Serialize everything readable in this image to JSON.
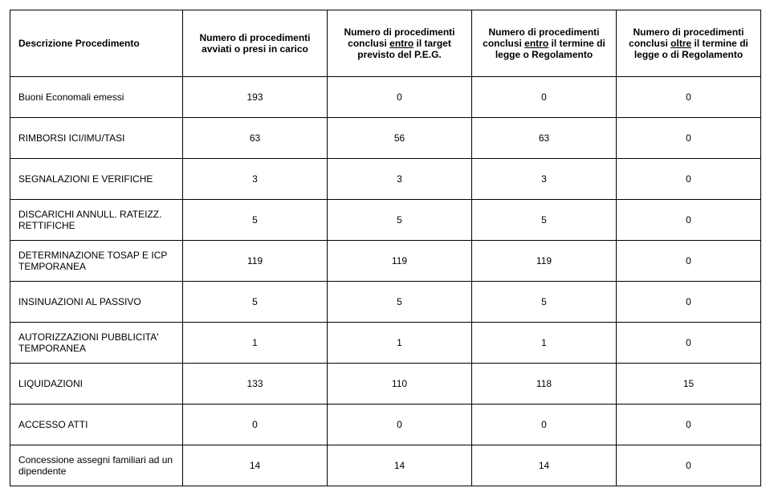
{
  "headers": {
    "col0": "Descrizione Procedimento",
    "col1": "Numero di procedimenti avviati o presi in carico",
    "col2_pre": "Numero di procedimenti conclusi ",
    "col2_u": "entro",
    "col2_post": " il target previsto del P.E.G.",
    "col3_pre": "Numero di procedimenti conclusi ",
    "col3_u": "entro",
    "col3_post": " il termine di legge o Regolamento",
    "col4_pre": "Numero di procedimenti conclusi ",
    "col4_u": "oltre",
    "col4_post": " il termine di legge o di Regolamento"
  },
  "rows": [
    {
      "label": "Buoni Economali emessi",
      "indent": true,
      "v": [
        "193",
        "0",
        "0",
        "0"
      ]
    },
    {
      "label": "RIMBORSI ICI/IMU/TASI",
      "indent": true,
      "v": [
        "63",
        "56",
        "63",
        "0"
      ]
    },
    {
      "label": "SEGNALAZIONI E VERIFICHE",
      "indent": false,
      "v": [
        "3",
        "3",
        "3",
        "0"
      ]
    },
    {
      "label": "DISCARICHI ANNULL. RATEIZZ. RETTIFICHE",
      "indent": false,
      "v": [
        "5",
        "5",
        "5",
        "0"
      ]
    },
    {
      "label": "DETERMINAZIONE TOSAP E ICP TEMPORANEA",
      "indent": false,
      "v": [
        "119",
        "119",
        "119",
        "0"
      ]
    },
    {
      "label": "INSINUAZIONI AL PASSIVO",
      "indent": false,
      "v": [
        "5",
        "5",
        "5",
        "0"
      ]
    },
    {
      "label": "AUTORIZZAZIONI PUBBLICITA' TEMPORANEA",
      "indent": false,
      "v": [
        "1",
        "1",
        "1",
        "0"
      ]
    },
    {
      "label": "LIQUIDAZIONI",
      "indent": true,
      "v": [
        "133",
        "110",
        "118",
        "15"
      ]
    },
    {
      "label": "ACCESSO ATTI",
      "indent": true,
      "v": [
        "0",
        "0",
        "0",
        "0"
      ]
    },
    {
      "label": "Concessione assegni familiari ad un dipendente",
      "indent": false,
      "v": [
        "14",
        "14",
        "14",
        "0"
      ]
    }
  ],
  "col_widths": [
    "215px",
    "180px",
    "180px",
    "180px",
    "180px"
  ]
}
